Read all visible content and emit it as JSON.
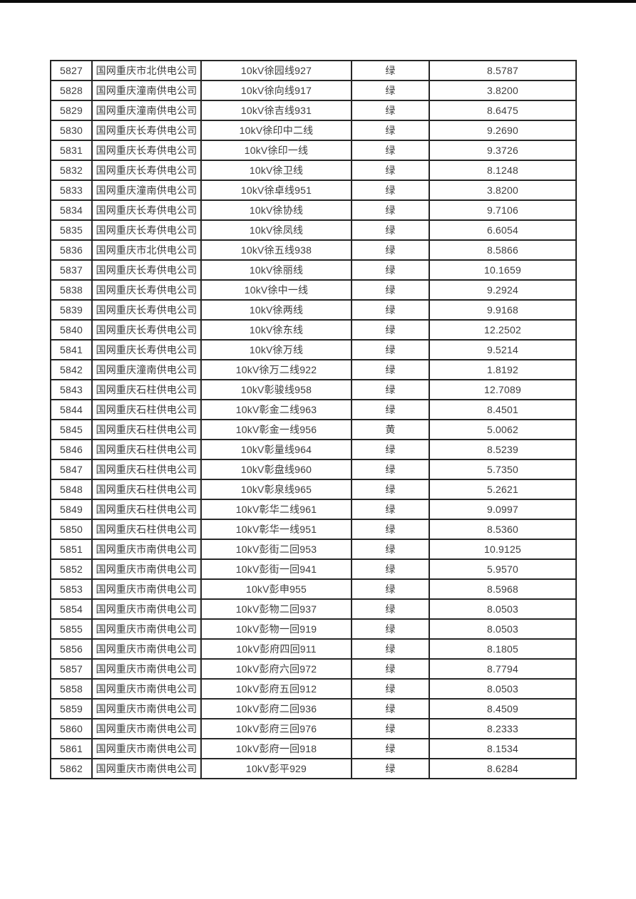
{
  "page": {
    "top_bar_color": "#0a0a0a",
    "background_color": "#ffffff",
    "table_border_color": "#262626",
    "text_color": "#3d3d3d"
  },
  "table": {
    "row_range": {
      "first": "5827",
      "last": "5862"
    },
    "status_values_visible": [
      "绿",
      "黄"
    ],
    "rows": [
      [
        "5827",
        "国网重庆市北供电公司",
        "10kV徐园线927",
        "绿",
        "8.5787"
      ],
      [
        "5828",
        "国网重庆潼南供电公司",
        "10kV徐向线917",
        "绿",
        "3.8200"
      ],
      [
        "5829",
        "国网重庆潼南供电公司",
        "10kV徐吉线931",
        "绿",
        "8.6475"
      ],
      [
        "5830",
        "国网重庆长寿供电公司",
        "10kV徐印中二线",
        "绿",
        "9.2690"
      ],
      [
        "5831",
        "国网重庆长寿供电公司",
        "10kV徐印一线",
        "绿",
        "9.3726"
      ],
      [
        "5832",
        "国网重庆长寿供电公司",
        "10kV徐卫线",
        "绿",
        "8.1248"
      ],
      [
        "5833",
        "国网重庆潼南供电公司",
        "10kV徐卓线951",
        "绿",
        "3.8200"
      ],
      [
        "5834",
        "国网重庆长寿供电公司",
        "10kV徐协线",
        "绿",
        "9.7106"
      ],
      [
        "5835",
        "国网重庆长寿供电公司",
        "10kV徐凤线",
        "绿",
        "6.6054"
      ],
      [
        "5836",
        "国网重庆市北供电公司",
        "10kV徐五线938",
        "绿",
        "8.5866"
      ],
      [
        "5837",
        "国网重庆长寿供电公司",
        "10kV徐丽线",
        "绿",
        "10.1659"
      ],
      [
        "5838",
        "国网重庆长寿供电公司",
        "10kV徐中一线",
        "绿",
        "9.2924"
      ],
      [
        "5839",
        "国网重庆长寿供电公司",
        "10kV徐两线",
        "绿",
        "9.9168"
      ],
      [
        "5840",
        "国网重庆长寿供电公司",
        "10kV徐东线",
        "绿",
        "12.2502"
      ],
      [
        "5841",
        "国网重庆长寿供电公司",
        "10kV徐万线",
        "绿",
        "9.5214"
      ],
      [
        "5842",
        "国网重庆潼南供电公司",
        "10kV徐万二线922",
        "绿",
        "1.8192"
      ],
      [
        "5843",
        "国网重庆石柱供电公司",
        "10kV彰骏线958",
        "绿",
        "12.7089"
      ],
      [
        "5844",
        "国网重庆石柱供电公司",
        "10kV彰金二线963",
        "绿",
        "8.4501"
      ],
      [
        "5845",
        "国网重庆石柱供电公司",
        "10kV彰金一线956",
        "黄",
        "5.0062"
      ],
      [
        "5846",
        "国网重庆石柱供电公司",
        "10kV彰量线964",
        "绿",
        "8.5239"
      ],
      [
        "5847",
        "国网重庆石柱供电公司",
        "10kV彰盘线960",
        "绿",
        "5.7350"
      ],
      [
        "5848",
        "国网重庆石柱供电公司",
        "10kV彰泉线965",
        "绿",
        "5.2621"
      ],
      [
        "5849",
        "国网重庆石柱供电公司",
        "10kV彰华二线961",
        "绿",
        "9.0997"
      ],
      [
        "5850",
        "国网重庆石柱供电公司",
        "10kV彰华一线951",
        "绿",
        "8.5360"
      ],
      [
        "5851",
        "国网重庆市南供电公司",
        "10kV彭街二回953",
        "绿",
        "10.9125"
      ],
      [
        "5852",
        "国网重庆市南供电公司",
        "10kV彭街一回941",
        "绿",
        "5.9570"
      ],
      [
        "5853",
        "国网重庆市南供电公司",
        "10kV彭申955",
        "绿",
        "8.5968"
      ],
      [
        "5854",
        "国网重庆市南供电公司",
        "10kV彭物二回937",
        "绿",
        "8.0503"
      ],
      [
        "5855",
        "国网重庆市南供电公司",
        "10kV彭物一回919",
        "绿",
        "8.0503"
      ],
      [
        "5856",
        "国网重庆市南供电公司",
        "10kV彭府四回911",
        "绿",
        "8.1805"
      ],
      [
        "5857",
        "国网重庆市南供电公司",
        "10kV彭府六回972",
        "绿",
        "8.7794"
      ],
      [
        "5858",
        "国网重庆市南供电公司",
        "10kV彭府五回912",
        "绿",
        "8.0503"
      ],
      [
        "5859",
        "国网重庆市南供电公司",
        "10kV彭府二回936",
        "绿",
        "8.4509"
      ],
      [
        "5860",
        "国网重庆市南供电公司",
        "10kV彭府三回976",
        "绿",
        "8.2333"
      ],
      [
        "5861",
        "国网重庆市南供电公司",
        "10kV彭府一回918",
        "绿",
        "8.1534"
      ],
      [
        "5862",
        "国网重庆市南供电公司",
        "10kV彭平929",
        "绿",
        "8.6284"
      ]
    ]
  }
}
